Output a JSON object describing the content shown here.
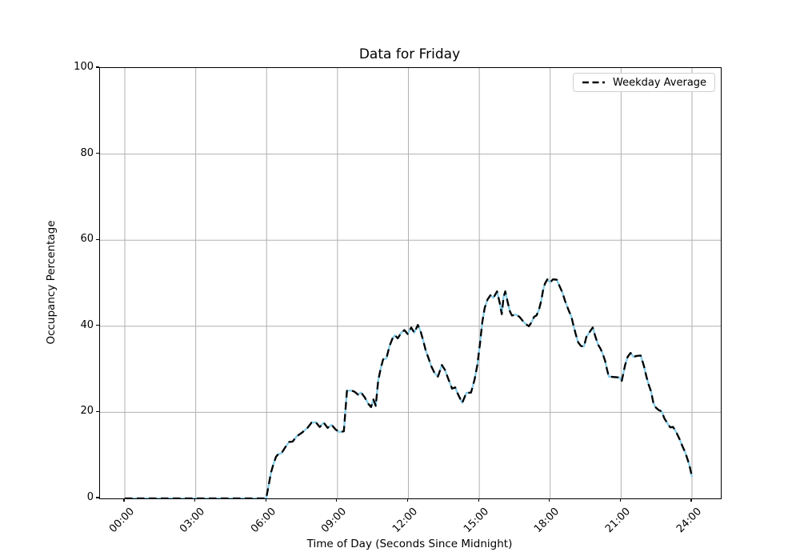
{
  "title": "Data for Friday",
  "legend": {
    "label": "Weekday Average"
  },
  "axes": {
    "xlabel": "Time of Day (Seconds Since Midnight)",
    "ylabel": "Occupancy Percentage"
  },
  "colors": {
    "weekday_average_line": "#000000",
    "friday_line": "#87CEEB",
    "grid": "#b0b0b0",
    "spine": "#000000",
    "legend_border": "#d0d0d0",
    "text": "#000000"
  },
  "chart_data": {
    "type": "line",
    "title": "Data for Friday",
    "xlabel": "Time of Day (Seconds Since Midnight)",
    "ylabel": "Occupancy Percentage",
    "xlim_hours": [
      -1.05,
      25.22
    ],
    "ylim": [
      0,
      100
    ],
    "grid": true,
    "legend_position": "upper right",
    "x_ticks_hours": [
      0,
      3,
      6,
      9,
      12,
      15,
      18,
      21,
      24
    ],
    "x_tick_labels": [
      "00:00",
      "03:00",
      "06:00",
      "09:00",
      "12:00",
      "15:00",
      "18:00",
      "21:00",
      "24:00"
    ],
    "y_ticks": [
      0,
      20,
      40,
      60,
      80,
      100
    ],
    "y_grid_ticks": [
      20,
      40,
      60,
      80
    ],
    "points_hours_value": [
      [
        0,
        0
      ],
      [
        0.5,
        0
      ],
      [
        1,
        0
      ],
      [
        1.5,
        0
      ],
      [
        2,
        0
      ],
      [
        2.5,
        0
      ],
      [
        3,
        0
      ],
      [
        3.5,
        0
      ],
      [
        4,
        0
      ],
      [
        4.5,
        0
      ],
      [
        5,
        0
      ],
      [
        5.5,
        0
      ],
      [
        5.98,
        0
      ],
      [
        6.08,
        2.8
      ],
      [
        6.18,
        5.9
      ],
      [
        6.28,
        7.8
      ],
      [
        6.4,
        9.7
      ],
      [
        6.5,
        10.3
      ],
      [
        6.63,
        10.5
      ],
      [
        6.78,
        11.8
      ],
      [
        6.95,
        13.1
      ],
      [
        7.1,
        13.2
      ],
      [
        7.27,
        14.4
      ],
      [
        7.5,
        15.3
      ],
      [
        7.73,
        16.4
      ],
      [
        7.9,
        17.6
      ],
      [
        8.08,
        17.7
      ],
      [
        8.25,
        16.6
      ],
      [
        8.42,
        17.6
      ],
      [
        8.58,
        16.4
      ],
      [
        8.75,
        17.1
      ],
      [
        8.92,
        16
      ],
      [
        9.08,
        15.4
      ],
      [
        9.27,
        15.6
      ],
      [
        9.4,
        25
      ],
      [
        9.57,
        25.1
      ],
      [
        9.72,
        24.8
      ],
      [
        9.87,
        24.1
      ],
      [
        10,
        24.6
      ],
      [
        10.15,
        23.5
      ],
      [
        10.3,
        22
      ],
      [
        10.42,
        21.2
      ],
      [
        10.52,
        23
      ],
      [
        10.62,
        21.5
      ],
      [
        10.72,
        27.3
      ],
      [
        10.83,
        30.2
      ],
      [
        10.93,
        32.3
      ],
      [
        11.07,
        32.5
      ],
      [
        11.2,
        35.4
      ],
      [
        11.33,
        37.2
      ],
      [
        11.43,
        37.9
      ],
      [
        11.55,
        37.2
      ],
      [
        11.7,
        38.5
      ],
      [
        11.83,
        39.1
      ],
      [
        11.97,
        38.2
      ],
      [
        12.12,
        39.7
      ],
      [
        12.25,
        38.5
      ],
      [
        12.4,
        40.3
      ],
      [
        12.52,
        38.8
      ],
      [
        12.63,
        36.6
      ],
      [
        12.73,
        34.4
      ],
      [
        12.85,
        32.6
      ],
      [
        12.97,
        30.7
      ],
      [
        13.1,
        29.2
      ],
      [
        13.25,
        28.3
      ],
      [
        13.42,
        31
      ],
      [
        13.55,
        29.8
      ],
      [
        13.7,
        27.6
      ],
      [
        13.85,
        25.5
      ],
      [
        13.98,
        25.8
      ],
      [
        14.1,
        24.2
      ],
      [
        14.28,
        22.2
      ],
      [
        14.45,
        24.5
      ],
      [
        14.65,
        24.6
      ],
      [
        14.8,
        27.6
      ],
      [
        14.92,
        31
      ],
      [
        15.03,
        36
      ],
      [
        15.13,
        41
      ],
      [
        15.23,
        44.3
      ],
      [
        15.35,
        46.2
      ],
      [
        15.47,
        47.2
      ],
      [
        15.6,
        46.6
      ],
      [
        15.75,
        48.1
      ],
      [
        15.87,
        45.3
      ],
      [
        15.95,
        42.8
      ],
      [
        16.03,
        46.8
      ],
      [
        16.1,
        48.1
      ],
      [
        16.2,
        45.6
      ],
      [
        16.3,
        43.4
      ],
      [
        16.38,
        42.5
      ],
      [
        16.55,
        42.7
      ],
      [
        16.7,
        42.2
      ],
      [
        16.83,
        41.3
      ],
      [
        16.95,
        40.6
      ],
      [
        17.1,
        40
      ],
      [
        17.22,
        41
      ],
      [
        17.32,
        42.2
      ],
      [
        17.42,
        42.5
      ],
      [
        17.52,
        43.7
      ],
      [
        17.62,
        45.9
      ],
      [
        17.7,
        48.4
      ],
      [
        17.78,
        49.9
      ],
      [
        17.88,
        50.9
      ],
      [
        18,
        50.2
      ],
      [
        18.12,
        50.9
      ],
      [
        18.28,
        50.8
      ],
      [
        18.4,
        49.3
      ],
      [
        18.52,
        47.8
      ],
      [
        18.63,
        45.9
      ],
      [
        18.78,
        43.7
      ],
      [
        18.9,
        42.2
      ],
      [
        18.98,
        40.3
      ],
      [
        19.08,
        38.2
      ],
      [
        19.18,
        36.3
      ],
      [
        19.3,
        35.4
      ],
      [
        19.43,
        35.3
      ],
      [
        19.53,
        37.5
      ],
      [
        19.65,
        38.5
      ],
      [
        19.8,
        39.7
      ],
      [
        19.92,
        37.5
      ],
      [
        20.03,
        35.7
      ],
      [
        20.13,
        34.8
      ],
      [
        20.23,
        33.5
      ],
      [
        20.32,
        32
      ],
      [
        20.4,
        30.1
      ],
      [
        20.48,
        28.3
      ],
      [
        20.7,
        28.2
      ],
      [
        20.93,
        28.1
      ],
      [
        21.03,
        27.3
      ],
      [
        21.17,
        31
      ],
      [
        21.28,
        32.9
      ],
      [
        21.4,
        33.8
      ],
      [
        21.52,
        32.9
      ],
      [
        21.67,
        33.1
      ],
      [
        21.83,
        33.2
      ],
      [
        21.97,
        30.7
      ],
      [
        22.07,
        28.3
      ],
      [
        22.17,
        26.4
      ],
      [
        22.27,
        24.8
      ],
      [
        22.37,
        22.1
      ],
      [
        22.47,
        21.1
      ],
      [
        22.6,
        20.5
      ],
      [
        22.72,
        20.2
      ],
      [
        22.83,
        18.6
      ],
      [
        22.97,
        17.4
      ],
      [
        23.08,
        16.5
      ],
      [
        23.2,
        16.6
      ],
      [
        23.35,
        15.2
      ],
      [
        23.48,
        13.7
      ],
      [
        23.6,
        12.1
      ],
      [
        23.72,
        10.6
      ],
      [
        23.82,
        9
      ],
      [
        23.9,
        7.5
      ],
      [
        24,
        5
      ]
    ],
    "series": [
      {
        "name": "Friday",
        "color": "#87CEEB",
        "linestyle": "solid",
        "linewidth": 2.3,
        "in_legend": false,
        "values_ref": "points_hours_value"
      },
      {
        "name": "Weekday Average",
        "color": "#000000",
        "linestyle": "dashed",
        "linewidth": 2.3,
        "in_legend": true,
        "values_ref": "points_hours_value"
      }
    ]
  }
}
